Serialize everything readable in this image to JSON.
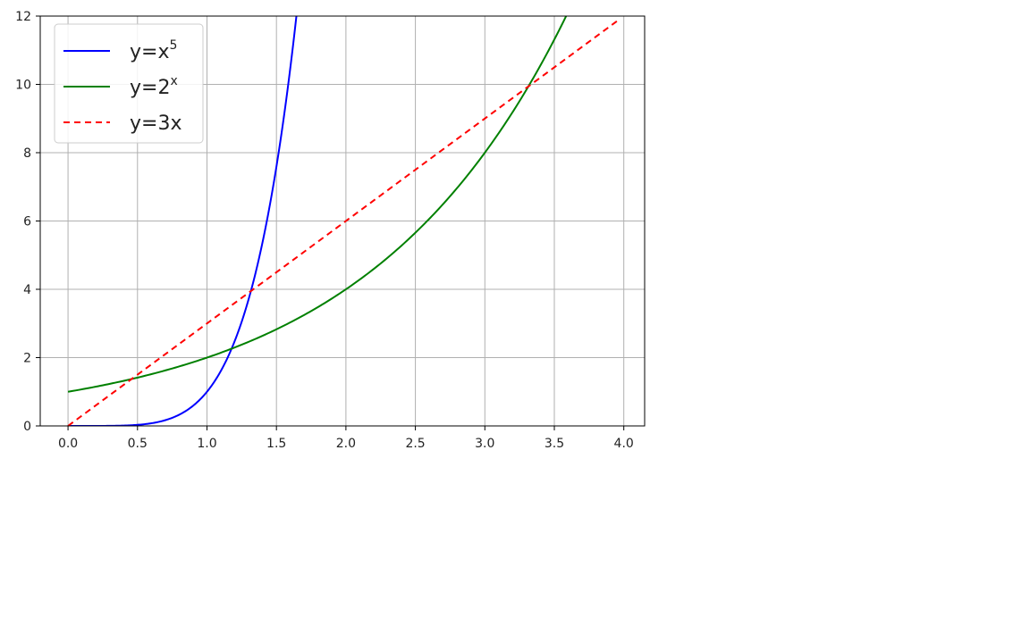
{
  "chart_data": {
    "type": "line",
    "title": "",
    "xlabel": "",
    "ylabel": "",
    "xlim": [
      -0.2,
      4.15
    ],
    "ylim": [
      0,
      12
    ],
    "x_ticks": [
      "0.0",
      "0.5",
      "1.0",
      "1.5",
      "2.0",
      "2.5",
      "3.0",
      "3.5",
      "4.0"
    ],
    "y_ticks": [
      "0",
      "2",
      "4",
      "6",
      "8",
      "10",
      "12"
    ],
    "grid": true,
    "legend_position": "top-left",
    "series": [
      {
        "name": "y=x^5",
        "legend_base": "y=x",
        "legend_sup": "5",
        "color": "#0000ff",
        "style": "solid",
        "points": [
          [
            0,
            0
          ],
          [
            0.5,
            0.03
          ],
          [
            0.7,
            0.17
          ],
          [
            0.8,
            0.33
          ],
          [
            0.9,
            0.59
          ],
          [
            1.0,
            1.0
          ],
          [
            1.1,
            1.61
          ],
          [
            1.2,
            2.49
          ],
          [
            1.3,
            3.71
          ],
          [
            1.4,
            5.38
          ],
          [
            1.5,
            7.59
          ],
          [
            1.55,
            8.95
          ],
          [
            1.6,
            10.49
          ],
          [
            1.644,
            12.0
          ]
        ]
      },
      {
        "name": "y=2^x",
        "legend_base": "y=2",
        "legend_sup": "x",
        "color": "#008000",
        "style": "solid",
        "points": [
          [
            0,
            1.0
          ],
          [
            0.5,
            1.41
          ],
          [
            1.0,
            2.0
          ],
          [
            1.5,
            2.83
          ],
          [
            2.0,
            4.0
          ],
          [
            2.5,
            5.66
          ],
          [
            3.0,
            8.0
          ],
          [
            3.3,
            9.85
          ],
          [
            3.5,
            11.31
          ],
          [
            3.585,
            12.0
          ]
        ]
      },
      {
        "name": "y=3x",
        "legend_base": "y=3x",
        "legend_sup": "",
        "color": "#ff0000",
        "style": "dashed",
        "points": [
          [
            0,
            0
          ],
          [
            3.95,
            11.85
          ]
        ]
      }
    ]
  }
}
